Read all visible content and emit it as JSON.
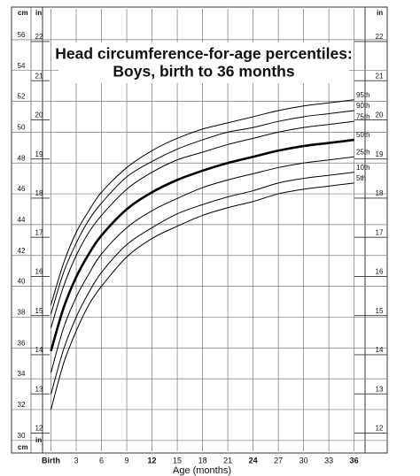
{
  "chart_data": {
    "type": "line",
    "title": "Head circumference-for-age percentiles:",
    "subtitle": "Boys, birth to 36 months",
    "x_label": "Age (months)",
    "y_label": "cm",
    "y2_label": "in",
    "x": [
      0,
      1.5,
      3,
      4.5,
      6,
      9,
      12,
      15,
      18,
      21,
      24,
      27,
      30,
      33,
      36
    ],
    "xlim": [
      -1,
      37.3
    ],
    "xticks": [
      {
        "value": 0,
        "label": "Birth"
      },
      3,
      6,
      9,
      12,
      15,
      18,
      21,
      24,
      27,
      30,
      33,
      36
    ],
    "ylim": [
      29.3,
      58
    ],
    "yticks": [
      30,
      32,
      34,
      36,
      38,
      40,
      42,
      44,
      46,
      48,
      50,
      52,
      54,
      56
    ],
    "y2lim": [
      11.535,
      22.835
    ],
    "y2ticks": [
      12,
      13,
      14,
      15,
      16,
      17,
      18,
      19,
      20,
      21,
      22
    ],
    "grid": true,
    "series": [
      {
        "name": "95th",
        "color": "#000000",
        "values": [
          38.8,
          41.5,
          43.5,
          44.9,
          46.1,
          47.7,
          48.8,
          49.6,
          50.2,
          50.6,
          51.0,
          51.4,
          51.7,
          51.9,
          52.1
        ]
      },
      {
        "name": "90th",
        "color": "#000000",
        "values": [
          38.2,
          40.9,
          42.8,
          44.3,
          45.4,
          47.1,
          48.1,
          48.9,
          49.5,
          50.0,
          50.3,
          50.7,
          51.0,
          51.2,
          51.4
        ]
      },
      {
        "name": "75th",
        "color": "#000000",
        "values": [
          37.3,
          40.0,
          42.0,
          43.5,
          44.6,
          46.3,
          47.4,
          48.2,
          48.7,
          49.2,
          49.6,
          50.0,
          50.3,
          50.5,
          50.7
        ]
      },
      {
        "name": "50th",
        "color": "#000000",
        "highlight": true,
        "values": [
          35.8,
          38.6,
          40.6,
          42.1,
          43.3,
          45.0,
          46.1,
          46.9,
          47.5,
          48.0,
          48.4,
          48.8,
          49.1,
          49.3,
          49.5
        ]
      },
      {
        "name": "25th",
        "color": "#000000",
        "values": [
          34.4,
          37.3,
          39.3,
          40.8,
          42.1,
          43.8,
          44.9,
          45.7,
          46.4,
          46.9,
          47.3,
          47.7,
          48.0,
          48.2,
          48.4
        ]
      },
      {
        "name": "10th",
        "color": "#000000",
        "values": [
          33.0,
          35.9,
          38.0,
          39.6,
          40.9,
          42.7,
          43.8,
          44.7,
          45.3,
          45.8,
          46.2,
          46.7,
          47.0,
          47.2,
          47.4
        ]
      },
      {
        "name": "5th",
        "color": "#000000",
        "values": [
          32.0,
          35.0,
          37.1,
          38.8,
          40.0,
          41.9,
          43.1,
          43.9,
          44.6,
          45.1,
          45.5,
          46.0,
          46.3,
          46.5,
          46.7
        ]
      }
    ]
  }
}
